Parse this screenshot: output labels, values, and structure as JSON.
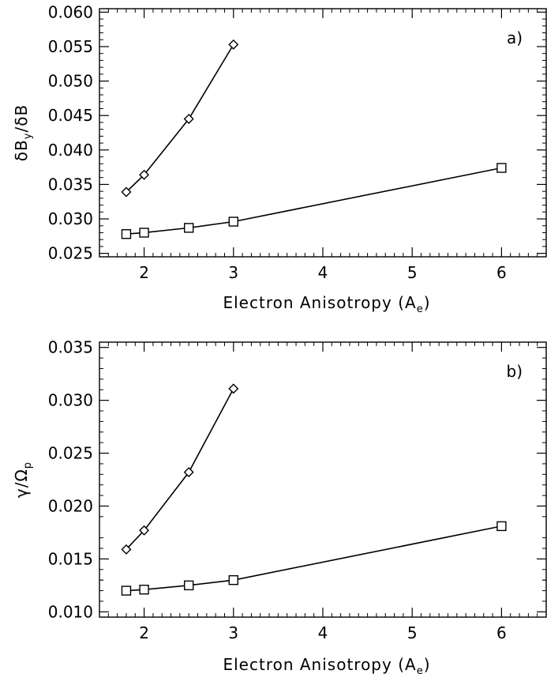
{
  "chart_data": [
    {
      "type": "line",
      "panel_label": "a)",
      "xlabel_main": "Electron Anisotropy (A",
      "xlabel_sub": "e",
      "xlabel_close": ")",
      "ylabel_parts": {
        "pre": "δB",
        "sub": "y",
        "post": "/δB"
      },
      "xlim": [
        1.5,
        6.5
      ],
      "ylim": [
        0.0245,
        0.0605
      ],
      "x_ticks": [
        "2",
        "3",
        "4",
        "5",
        "6"
      ],
      "y_ticks": [
        "0.025",
        "0.030",
        "0.035",
        "0.040",
        "0.045",
        "0.050",
        "0.055",
        "0.060"
      ],
      "series": [
        {
          "marker": "diamond",
          "x": [
            1.8,
            2.0,
            2.5,
            3.0
          ],
          "y": [
            0.0339,
            0.0364,
            0.0445,
            0.0553
          ]
        },
        {
          "marker": "square",
          "x": [
            1.8,
            2.0,
            2.5,
            3.0,
            6.0
          ],
          "y": [
            0.0278,
            0.028,
            0.0287,
            0.0296,
            0.0374
          ]
        }
      ]
    },
    {
      "type": "line",
      "panel_label": "b)",
      "xlabel_main": "Electron Anisotropy (A",
      "xlabel_sub": "e",
      "xlabel_close": ")",
      "ylabel_parts": {
        "pre": "γ/Ω",
        "sub": "p",
        "post": ""
      },
      "xlim": [
        1.5,
        6.5
      ],
      "ylim": [
        0.0095,
        0.0355
      ],
      "x_ticks": [
        "2",
        "3",
        "4",
        "5",
        "6"
      ],
      "y_ticks": [
        "0.010",
        "0.015",
        "0.020",
        "0.025",
        "0.030",
        "0.035"
      ],
      "series": [
        {
          "marker": "diamond",
          "x": [
            1.8,
            2.0,
            2.5,
            3.0
          ],
          "y": [
            0.0159,
            0.0177,
            0.0232,
            0.0311
          ]
        },
        {
          "marker": "square",
          "x": [
            1.8,
            2.0,
            2.5,
            3.0,
            6.0
          ],
          "y": [
            0.012,
            0.0121,
            0.0125,
            0.013,
            0.0181
          ]
        }
      ]
    }
  ]
}
